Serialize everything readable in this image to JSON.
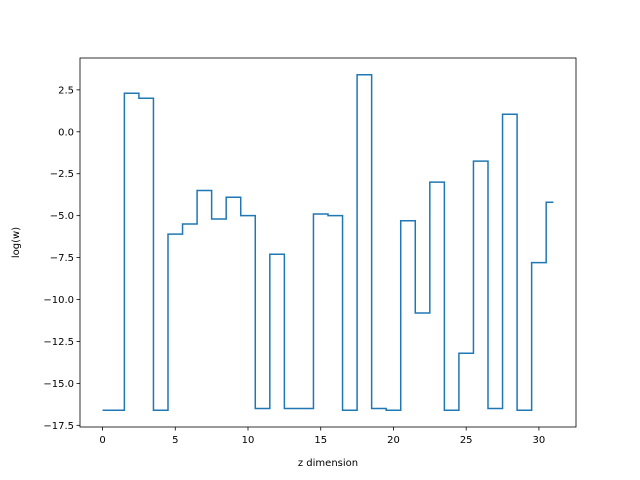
{
  "chart_data": {
    "type": "line",
    "drawstyle": "steps-mid",
    "title": "",
    "xlabel": "z dimension",
    "ylabel": "log(w)",
    "xlim": [
      -1.55,
      32.55
    ],
    "ylim": [
      -17.6,
      4.4
    ],
    "xticks": [
      0,
      5,
      10,
      15,
      20,
      25,
      30
    ],
    "xtick_labels": [
      "0",
      "5",
      "10",
      "15",
      "20",
      "25",
      "30"
    ],
    "yticks": [
      2.5,
      0.0,
      -2.5,
      -5.0,
      -7.5,
      -10.0,
      -12.5,
      -15.0,
      -17.5
    ],
    "ytick_labels": [
      "2.5",
      "0.0",
      "−2.5",
      "−5.0",
      "−7.5",
      "−10.0",
      "−12.5",
      "−15.0",
      "−17.5"
    ],
    "grid": false,
    "series": [
      {
        "color": "#1f77b4",
        "x": [
          0,
          1,
          2,
          3,
          4,
          5,
          6,
          7,
          8,
          9,
          10,
          11,
          12,
          13,
          14,
          15,
          16,
          17,
          18,
          19,
          20,
          21,
          22,
          23,
          24,
          25,
          26,
          27,
          28,
          29,
          30,
          31
        ],
        "values": [
          -16.6,
          -16.6,
          2.3,
          2.0,
          -16.6,
          -6.1,
          -5.5,
          -3.5,
          -5.2,
          -3.9,
          -5.0,
          -16.5,
          -7.3,
          -16.5,
          -16.5,
          -4.9,
          -5.0,
          -16.6,
          3.4,
          -16.5,
          -16.6,
          -5.3,
          -10.8,
          -3.0,
          -16.6,
          -13.2,
          -1.75,
          -16.5,
          1.05,
          -16.6,
          -7.8,
          -4.2
        ]
      }
    ]
  }
}
